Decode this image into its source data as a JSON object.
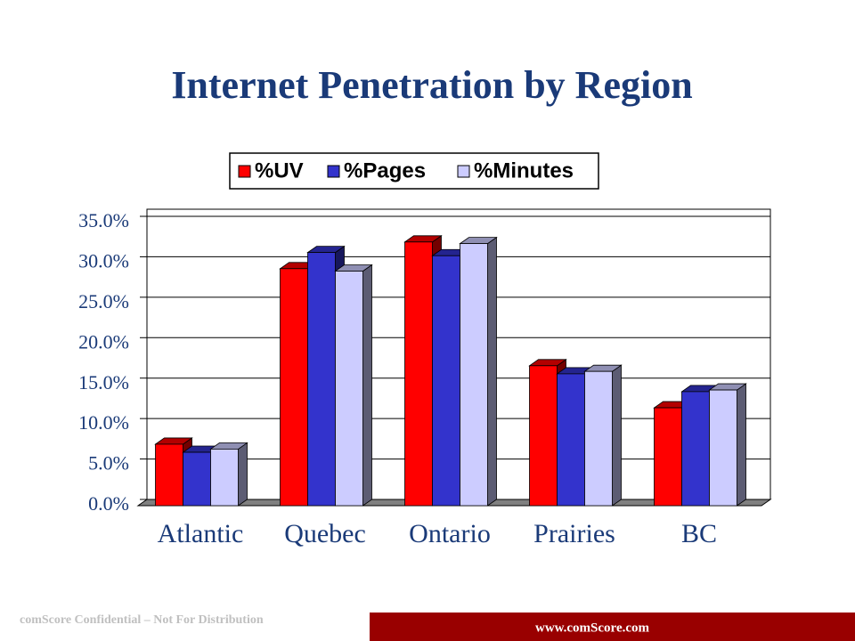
{
  "chart_data": {
    "type": "bar3d",
    "title": "Internet Penetration by Region",
    "categories": [
      "Atlantic",
      "Quebec",
      "Ontario",
      "Prairies",
      "BC"
    ],
    "series": [
      {
        "name": "%UV",
        "color": "#ff0000",
        "values": [
          7.6,
          29.3,
          32.6,
          17.3,
          12.1
        ]
      },
      {
        "name": "%Pages",
        "color": "#3333cc",
        "values": [
          6.6,
          31.3,
          30.9,
          16.3,
          14.1
        ]
      },
      {
        "name": "%Minutes",
        "color": "#ccccff",
        "values": [
          7.0,
          29.0,
          32.4,
          16.6,
          14.3
        ]
      }
    ],
    "ylim": [
      0,
      35
    ],
    "yticks": [
      {
        "value": 0,
        "label": "0.0%"
      },
      {
        "value": 5,
        "label": "5.0%"
      },
      {
        "value": 10,
        "label": "10.0%"
      },
      {
        "value": 15,
        "label": "15.0%"
      },
      {
        "value": 20,
        "label": "20.0%"
      },
      {
        "value": 25,
        "label": "25.0%"
      },
      {
        "value": 30,
        "label": "30.0%"
      },
      {
        "value": 35,
        "label": "35.0%"
      }
    ],
    "grid": true,
    "legend": "top"
  },
  "footer": {
    "confidential": "comScore Confidential – Not For Distribution",
    "website": "www.comScore.com"
  }
}
